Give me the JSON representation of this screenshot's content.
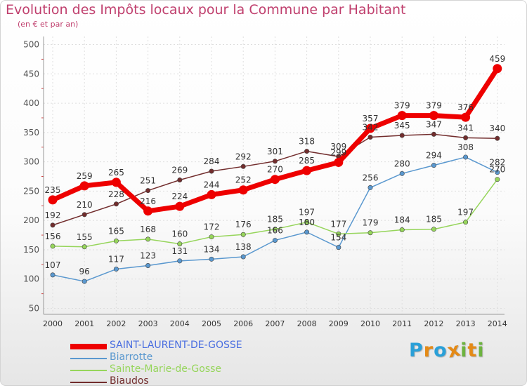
{
  "title": "Evolution des Impôts locaux pour la Commune par Habitant",
  "subtitle": "(en € et par an)",
  "logo": {
    "letters": [
      "P",
      "r",
      "o",
      "x",
      "i",
      "t",
      "i"
    ],
    "colors": [
      "#2aa0d8",
      "#e48a16",
      "#2aa0d8",
      "#e48a16",
      "#6db33f",
      "#e48a16",
      "#6db33f"
    ]
  },
  "chart_data": {
    "type": "line",
    "title": "Evolution des Impôts locaux pour la Commune par Habitant",
    "subtitle": "(en € et par an)",
    "x": [
      "2000",
      "2001",
      "2002",
      "2003",
      "2004",
      "2005",
      "2006",
      "2007",
      "2008",
      "2009",
      "2010",
      "2011",
      "2012",
      "2013",
      "2014"
    ],
    "ylim": [
      50,
      500
    ],
    "yticks": [
      "50",
      "100",
      "150",
      "200",
      "250",
      "300",
      "350",
      "400",
      "450",
      "500"
    ],
    "grid": true,
    "legend_position": "bottom-left",
    "series": [
      {
        "name": "SAINT-LAURENT-DE-GOSSE",
        "color": "#ee0000",
        "emphasis": true,
        "values": [
          235,
          259,
          265,
          216,
          224,
          244,
          252,
          270,
          285,
          299,
          357,
          379,
          379,
          376,
          459
        ],
        "labels": [
          "235",
          "259",
          "265",
          "216",
          "224",
          "244",
          "252",
          "270",
          "285",
          "299",
          "357",
          "379",
          "379",
          "376",
          "459"
        ]
      },
      {
        "name": "Biarrotte",
        "color": "#5a98cf",
        "emphasis": false,
        "values": [
          107,
          96,
          117,
          123,
          131,
          134,
          138,
          166,
          180,
          154,
          256,
          280,
          294,
          308,
          282
        ],
        "labels": [
          "107",
          "96",
          "117",
          "123",
          "131",
          "134",
          "138",
          "166",
          "180",
          "154",
          "256",
          "280",
          "294",
          "308",
          "282"
        ]
      },
      {
        "name": "Sainte-Marie-de-Gosse",
        "color": "#96d55b",
        "emphasis": false,
        "values": [
          156,
          155,
          165,
          168,
          160,
          172,
          176,
          185,
          197,
          177,
          179,
          184,
          185,
          197,
          270
        ],
        "labels": [
          "156",
          "155",
          "165",
          "168",
          "160",
          "172",
          "176",
          "185",
          "197",
          "177",
          "179",
          "184",
          "185",
          "197",
          "270"
        ]
      },
      {
        "name": "Biaudos",
        "color": "#722d2d",
        "emphasis": false,
        "values": [
          192,
          210,
          228,
          251,
          269,
          284,
          292,
          301,
          318,
          309,
          342,
          345,
          347,
          341,
          340
        ],
        "labels": [
          "192",
          "210",
          "228",
          "251",
          "269",
          "284",
          "292",
          "301",
          "318",
          "309",
          "342",
          "345",
          "347",
          "341",
          "340"
        ]
      }
    ]
  }
}
